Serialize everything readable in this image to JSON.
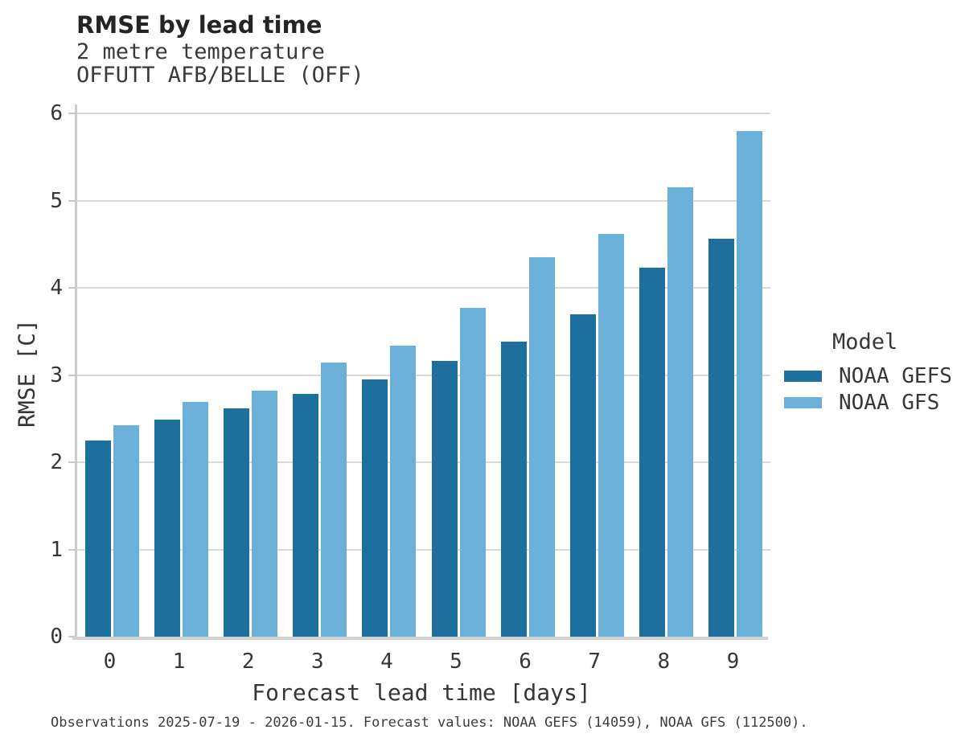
{
  "chart_data": {
    "type": "bar",
    "title": "RMSE by lead time",
    "subtitle": [
      "2 metre temperature",
      "OFFUTT AFB/BELLE (OFF)"
    ],
    "xlabel": "Forecast lead time [days]",
    "ylabel": "RMSE [C]",
    "categories": [
      0,
      1,
      2,
      3,
      4,
      5,
      6,
      7,
      8,
      9
    ],
    "series": [
      {
        "name": "NOAA GEFS",
        "color": "#1d6f9e",
        "values": [
          2.25,
          2.49,
          2.62,
          2.78,
          2.95,
          3.16,
          3.38,
          3.7,
          4.23,
          4.56
        ]
      },
      {
        "name": "NOAA GFS",
        "color": "#6bb0d8",
        "values": [
          2.42,
          2.69,
          2.82,
          3.14,
          3.34,
          3.77,
          4.35,
          4.62,
          5.15,
          5.8
        ]
      }
    ],
    "ylim": [
      0,
      6.1
    ],
    "yticks": [
      0,
      1,
      2,
      3,
      4,
      5,
      6
    ],
    "grid": true,
    "legend_title": "Model",
    "legend_position": "right"
  },
  "footnote": "Observations 2025-07-19 - 2026-01-15. Forecast values: NOAA GEFS (14059), NOAA GFS (112500)."
}
